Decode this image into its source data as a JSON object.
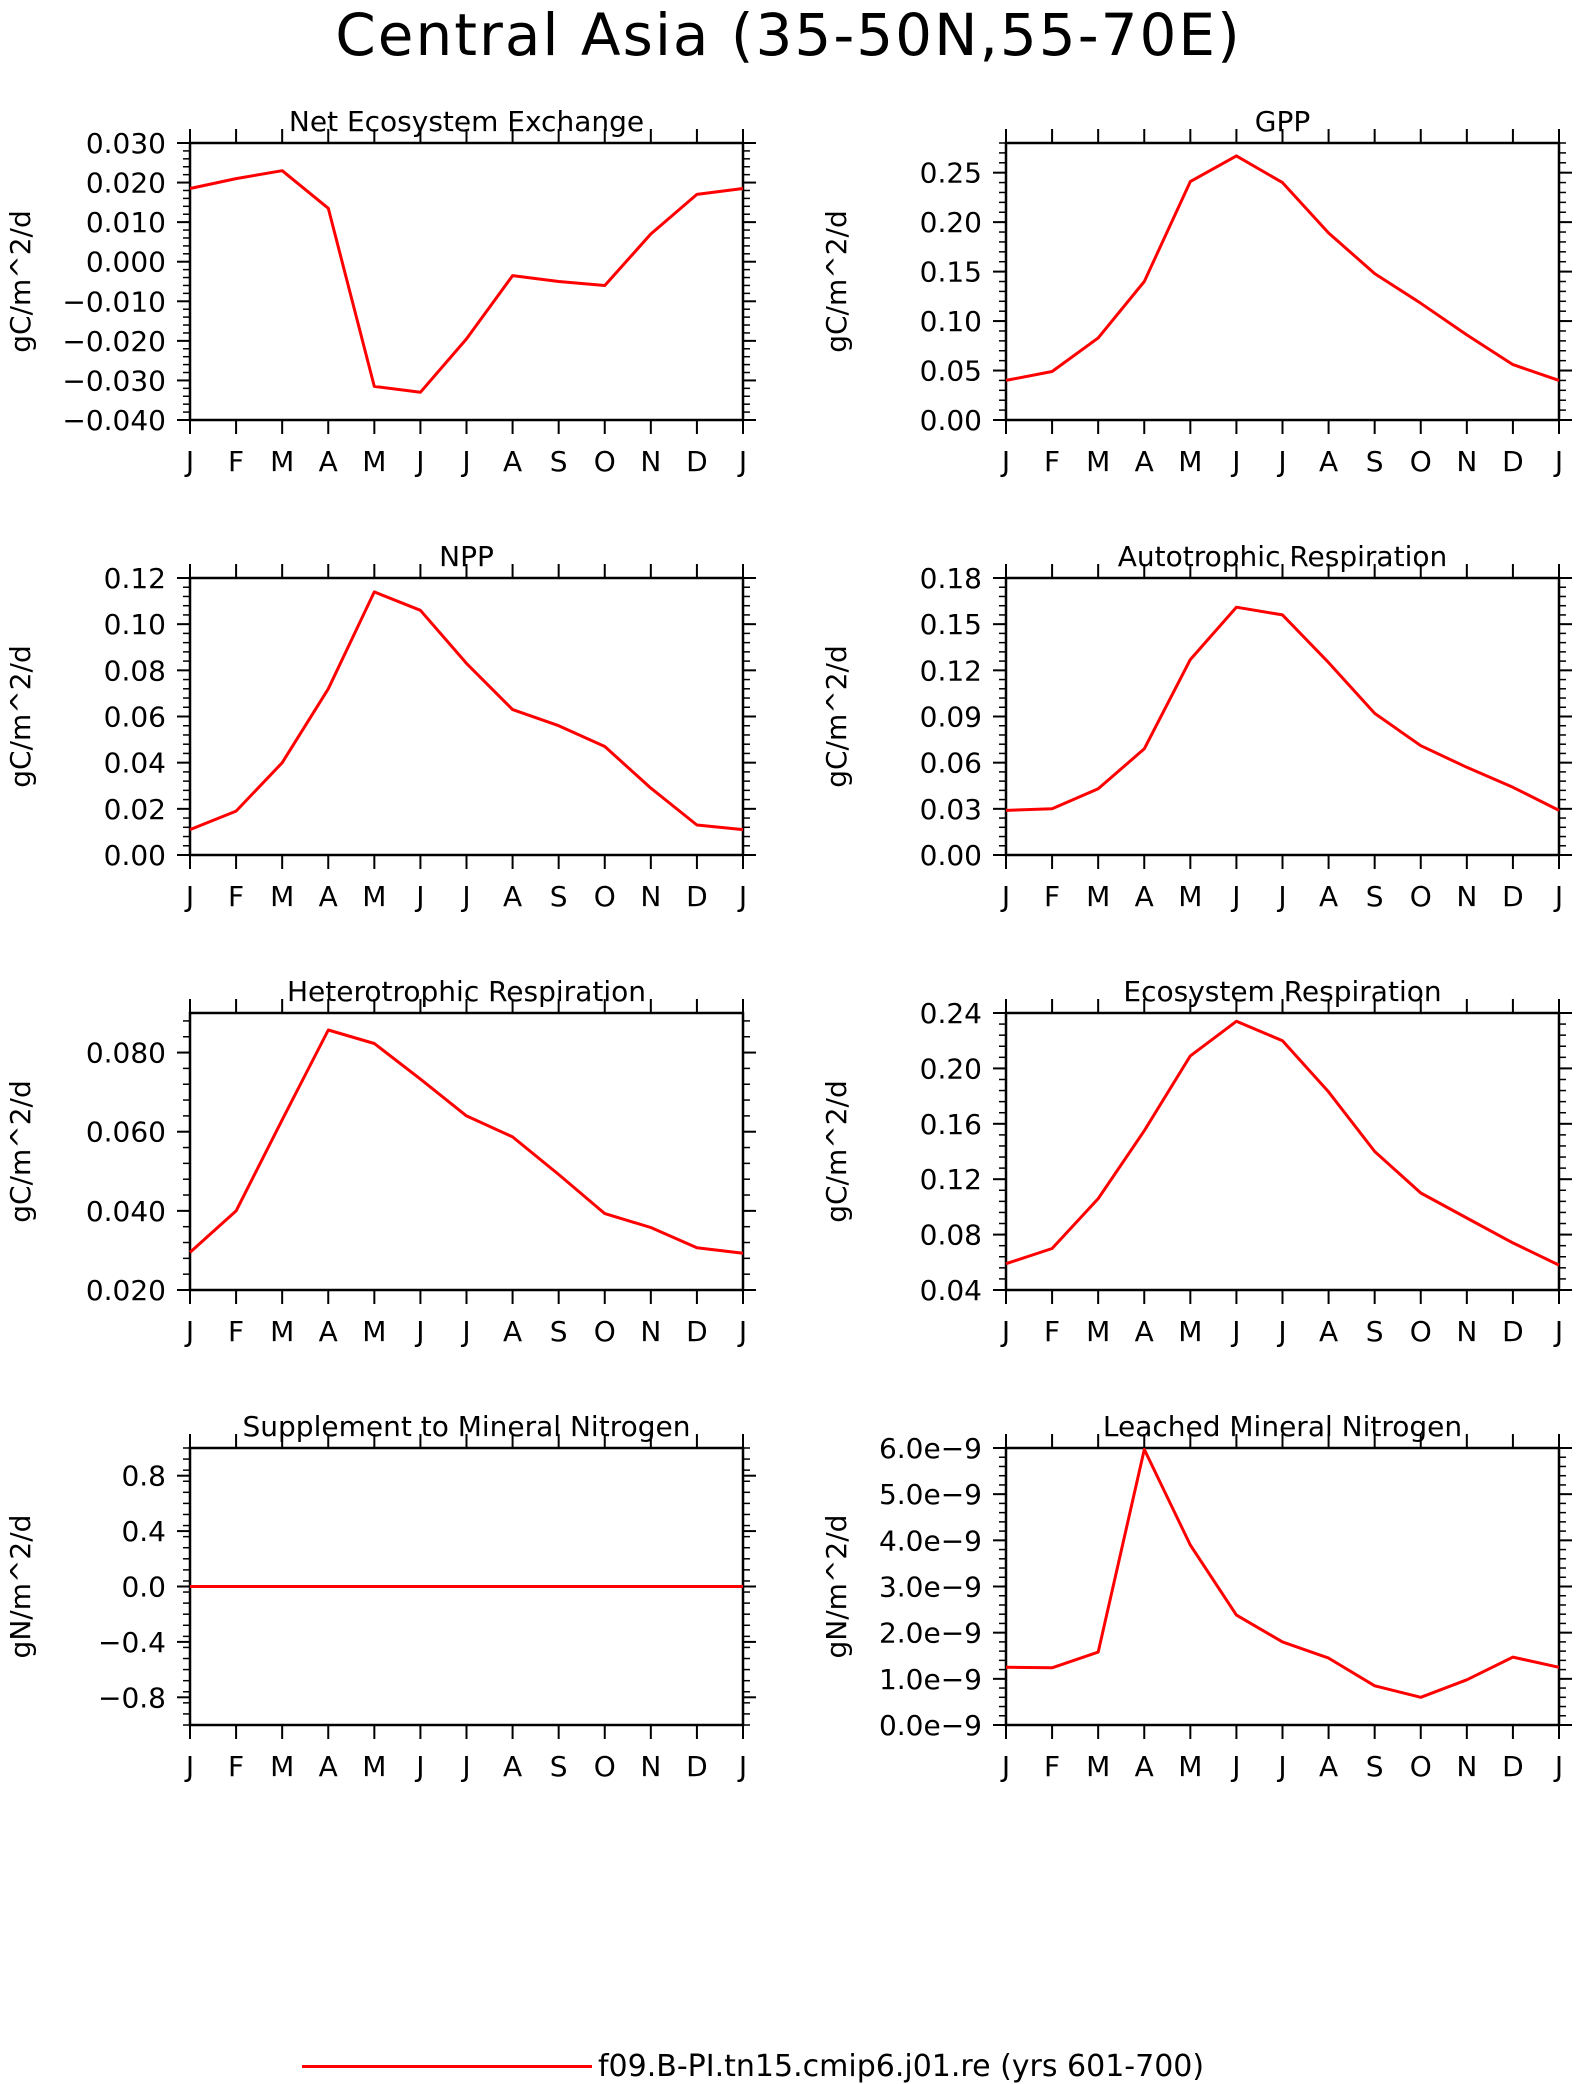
{
  "title": "Central Asia (35-50N,55-70E)",
  "legend": {
    "label": "f09.B-PI.tn15.cmip6.j01.re (yrs 601-700)",
    "color": "#ff0000"
  },
  "chart_data": [
    {
      "type": "line",
      "title": "Net Ecosystem Exchange",
      "ylabel": "gC/m^2/d",
      "categories": [
        "J",
        "F",
        "M",
        "A",
        "M",
        "J",
        "J",
        "A",
        "S",
        "O",
        "N",
        "D",
        "J"
      ],
      "ylim": [
        -0.04,
        0.03
      ],
      "yticks": [
        -0.04,
        -0.03,
        -0.02,
        -0.01,
        0.0,
        0.01,
        0.02,
        0.03
      ],
      "ytick_labels": [
        "-0.040",
        "-0.030",
        "-0.020",
        "-0.010",
        "0.000",
        "0.010",
        "0.020",
        "0.030"
      ],
      "values": [
        0.0185,
        0.021,
        0.023,
        0.0135,
        -0.0315,
        -0.033,
        -0.0195,
        -0.0035,
        -0.005,
        -0.006,
        0.007,
        0.017,
        0.0185
      ]
    },
    {
      "type": "line",
      "title": "GPP",
      "ylabel": "gC/m^2/d",
      "categories": [
        "J",
        "F",
        "M",
        "A",
        "M",
        "J",
        "J",
        "A",
        "S",
        "O",
        "N",
        "D",
        "J"
      ],
      "ylim": [
        0.0,
        0.28
      ],
      "yticks": [
        0.0,
        0.05,
        0.1,
        0.15,
        0.2,
        0.25
      ],
      "ytick_labels": [
        "0.00",
        "0.05",
        "0.10",
        "0.15",
        "0.20",
        "0.25"
      ],
      "values": [
        0.04,
        0.049,
        0.083,
        0.14,
        0.241,
        0.267,
        0.24,
        0.189,
        0.148,
        0.118,
        0.086,
        0.056,
        0.04
      ]
    },
    {
      "type": "line",
      "title": "NPP",
      "ylabel": "gC/m^2/d",
      "categories": [
        "J",
        "F",
        "M",
        "A",
        "M",
        "J",
        "J",
        "A",
        "S",
        "O",
        "N",
        "D",
        "J"
      ],
      "ylim": [
        0.0,
        0.12
      ],
      "yticks": [
        0.0,
        0.02,
        0.04,
        0.06,
        0.08,
        0.1,
        0.12
      ],
      "ytick_labels": [
        "0.00",
        "0.02",
        "0.04",
        "0.06",
        "0.08",
        "0.10",
        "0.12"
      ],
      "values": [
        0.011,
        0.019,
        0.04,
        0.072,
        0.114,
        0.106,
        0.083,
        0.063,
        0.056,
        0.047,
        0.029,
        0.013,
        0.011
      ]
    },
    {
      "type": "line",
      "title": "Autotrophic Respiration",
      "ylabel": "gC/m^2/d",
      "categories": [
        "J",
        "F",
        "M",
        "A",
        "M",
        "J",
        "J",
        "A",
        "S",
        "O",
        "N",
        "D",
        "J"
      ],
      "ylim": [
        0.0,
        0.18
      ],
      "yticks": [
        0.0,
        0.03,
        0.06,
        0.09,
        0.12,
        0.15,
        0.18
      ],
      "ytick_labels": [
        "0.00",
        "0.03",
        "0.06",
        "0.09",
        "0.12",
        "0.15",
        "0.18"
      ],
      "values": [
        0.029,
        0.03,
        0.043,
        0.069,
        0.127,
        0.161,
        0.156,
        0.125,
        0.092,
        0.071,
        0.057,
        0.044,
        0.029
      ]
    },
    {
      "type": "line",
      "title": "Heterotrophic Respiration",
      "ylabel": "gC/m^2/d",
      "categories": [
        "J",
        "F",
        "M",
        "A",
        "M",
        "J",
        "J",
        "A",
        "S",
        "O",
        "N",
        "D",
        "J"
      ],
      "ylim": [
        0.02,
        0.09
      ],
      "yticks": [
        0.02,
        0.04,
        0.06,
        0.08
      ],
      "ytick_labels": [
        "0.020",
        "0.040",
        "0.060",
        "0.080"
      ],
      "values": [
        0.0295,
        0.04,
        0.063,
        0.0857,
        0.0823,
        0.0733,
        0.064,
        0.0587,
        0.0492,
        0.0393,
        0.0358,
        0.0307,
        0.0293
      ]
    },
    {
      "type": "line",
      "title": "Ecosystem Respiration",
      "ylabel": "gC/m^2/d",
      "categories": [
        "J",
        "F",
        "M",
        "A",
        "M",
        "J",
        "J",
        "A",
        "S",
        "O",
        "N",
        "D",
        "J"
      ],
      "ylim": [
        0.04,
        0.24
      ],
      "yticks": [
        0.04,
        0.08,
        0.12,
        0.16,
        0.2,
        0.24
      ],
      "ytick_labels": [
        "0.04",
        "0.08",
        "0.12",
        "0.16",
        "0.20",
        "0.24"
      ],
      "values": [
        0.059,
        0.07,
        0.106,
        0.155,
        0.209,
        0.234,
        0.22,
        0.183,
        0.14,
        0.11,
        0.092,
        0.074,
        0.058
      ]
    },
    {
      "type": "line",
      "title": "Supplement to Mineral Nitrogen",
      "ylabel": "gN/m^2/d",
      "categories": [
        "J",
        "F",
        "M",
        "A",
        "M",
        "J",
        "J",
        "A",
        "S",
        "O",
        "N",
        "D",
        "J"
      ],
      "ylim": [
        -1.0,
        1.0
      ],
      "yticks": [
        -0.8,
        -0.4,
        0.0,
        0.4,
        0.8
      ],
      "ytick_labels": [
        "-0.8",
        "-0.4",
        "0.0",
        "0.4",
        "0.8"
      ],
      "values": [
        0,
        0,
        0,
        0,
        0,
        0,
        0,
        0,
        0,
        0,
        0,
        0,
        0
      ]
    },
    {
      "type": "line",
      "title": "Leached Mineral Nitrogen",
      "ylabel": "gN/m^2/d",
      "categories": [
        "J",
        "F",
        "M",
        "A",
        "M",
        "J",
        "J",
        "A",
        "S",
        "O",
        "N",
        "D",
        "J"
      ],
      "ylim": [
        0.0,
        6e-09
      ],
      "yticks": [
        0.0,
        1e-09,
        2e-09,
        3e-09,
        4e-09,
        5e-09,
        6e-09
      ],
      "ytick_labels": [
        "0.0e-9",
        "1.0e-9",
        "2.0e-9",
        "3.0e-9",
        "4.0e-9",
        "5.0e-9",
        "6.0e-9"
      ],
      "values": [
        1.25e-09,
        1.24e-09,
        1.58e-09,
        5.97e-09,
        3.9e-09,
        2.38e-09,
        1.8e-09,
        1.45e-09,
        8.5e-10,
        6e-10,
        9.8e-10,
        1.47e-09,
        1.25e-09
      ]
    }
  ]
}
